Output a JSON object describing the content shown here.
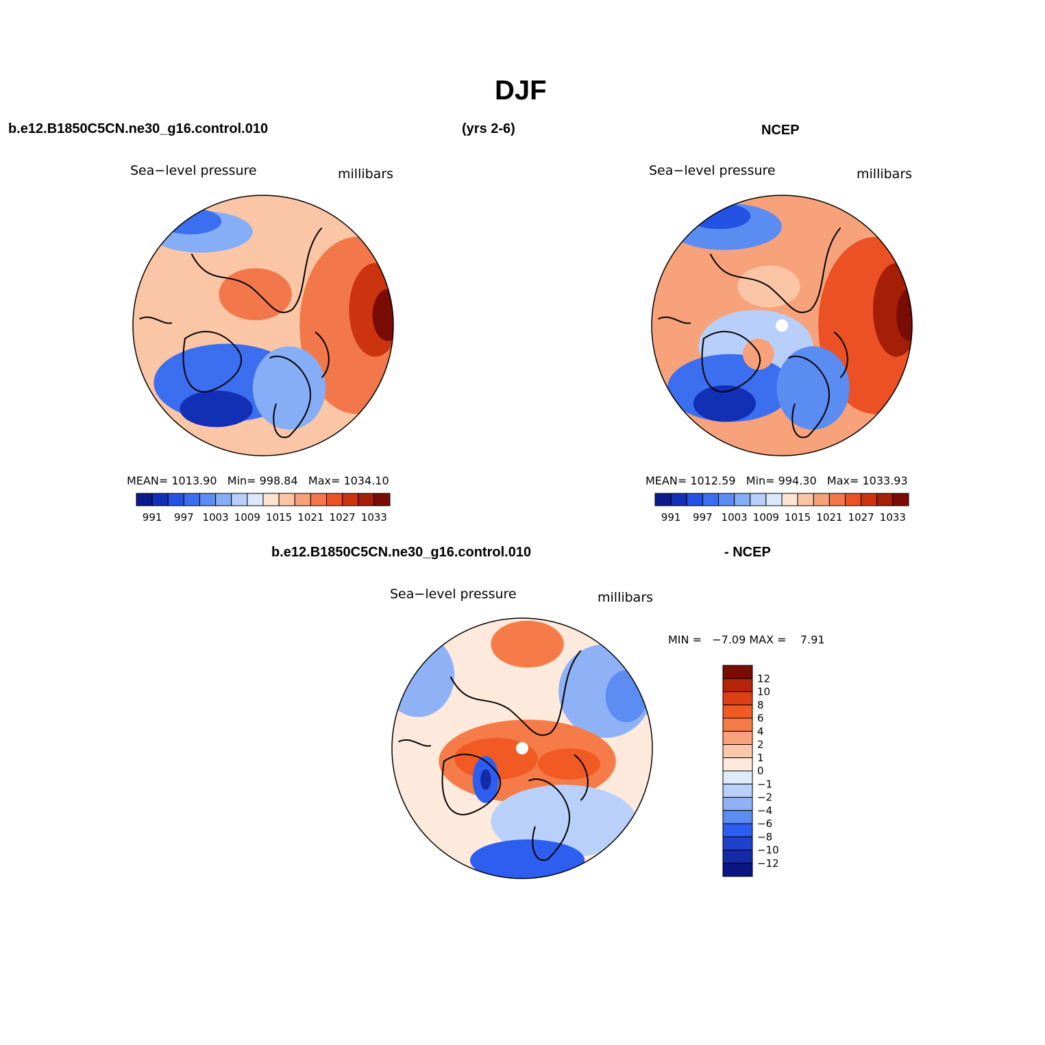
{
  "chart_data": [
    {
      "type": "heatmap",
      "id": "model",
      "projection": "north-polar stereographic",
      "variable_label": "Sea−level pressure",
      "units_label": "millibars",
      "stats": {
        "mean_label": "MEAN=",
        "mean": "1013.90",
        "min_label": "Min=",
        "min": "998.84",
        "max_label": "Max=",
        "max": "1034.10"
      },
      "colorbar": {
        "orientation": "horizontal",
        "colors": [
          "#0a1b8a",
          "#1230b5",
          "#2453e3",
          "#3c6ef0",
          "#5b8cf2",
          "#86aef6",
          "#b7cffa",
          "#dce9fb",
          "#fde4d2",
          "#fbc6a6",
          "#f7a27a",
          "#f2784c",
          "#eb5124",
          "#cc330f",
          "#a51e08",
          "#7a0c06"
        ],
        "labels": [
          "991",
          "997",
          "1003",
          "1009",
          "1015",
          "1021",
          "1027",
          "1033"
        ]
      },
      "blobs": [
        {
          "x": 0.26,
          "y": 0.14,
          "rx": 0.2,
          "ry": 0.08,
          "c": 5
        },
        {
          "x": 0.22,
          "y": 0.1,
          "rx": 0.12,
          "ry": 0.05,
          "c": 3
        },
        {
          "x": 0.86,
          "y": 0.5,
          "rx": 0.22,
          "ry": 0.34,
          "c": 11
        },
        {
          "x": 0.93,
          "y": 0.44,
          "rx": 0.1,
          "ry": 0.18,
          "c": 13
        },
        {
          "x": 0.98,
          "y": 0.46,
          "rx": 0.06,
          "ry": 0.1,
          "c": 15
        },
        {
          "x": 0.47,
          "y": 0.38,
          "rx": 0.14,
          "ry": 0.1,
          "c": 11
        },
        {
          "x": 0.36,
          "y": 0.72,
          "rx": 0.28,
          "ry": 0.15,
          "c": 3
        },
        {
          "x": 0.32,
          "y": 0.82,
          "rx": 0.14,
          "ry": 0.07,
          "c": 1
        },
        {
          "x": 0.6,
          "y": 0.74,
          "rx": 0.14,
          "ry": 0.16,
          "c": 5
        }
      ]
    },
    {
      "type": "heatmap",
      "id": "obs",
      "projection": "north-polar stereographic",
      "variable_label": "Sea−level pressure",
      "units_label": "millibars",
      "stats": {
        "mean_label": "MEAN=",
        "mean": "1012.59",
        "min_label": "Min=",
        "min": "994.30",
        "max_label": "Max=",
        "max": "1033.93"
      },
      "colorbar": {
        "orientation": "horizontal",
        "colors": [
          "#0a1b8a",
          "#1230b5",
          "#2453e3",
          "#3c6ef0",
          "#5b8cf2",
          "#86aef6",
          "#b7cffa",
          "#dce9fb",
          "#fde4d2",
          "#fbc6a6",
          "#f7a27a",
          "#f2784c",
          "#eb5124",
          "#cc330f",
          "#a51e08",
          "#7a0c06"
        ],
        "labels": [
          "991",
          "997",
          "1003",
          "1009",
          "1015",
          "1021",
          "1027",
          "1033"
        ]
      },
      "blobs": [
        {
          "x": 0.28,
          "y": 0.12,
          "rx": 0.22,
          "ry": 0.09,
          "c": 4
        },
        {
          "x": 0.26,
          "y": 0.08,
          "rx": 0.12,
          "ry": 0.05,
          "c": 2
        },
        {
          "x": 0.86,
          "y": 0.5,
          "rx": 0.22,
          "ry": 0.34,
          "c": 12
        },
        {
          "x": 0.94,
          "y": 0.44,
          "rx": 0.09,
          "ry": 0.18,
          "c": 14
        },
        {
          "x": 0.99,
          "y": 0.46,
          "rx": 0.05,
          "ry": 0.1,
          "c": 15
        },
        {
          "x": 0.45,
          "y": 0.35,
          "rx": 0.12,
          "ry": 0.08,
          "c": 9
        },
        {
          "x": 0.4,
          "y": 0.58,
          "rx": 0.22,
          "ry": 0.14,
          "c": 6
        },
        {
          "x": 0.3,
          "y": 0.74,
          "rx": 0.24,
          "ry": 0.13,
          "c": 3
        },
        {
          "x": 0.28,
          "y": 0.8,
          "rx": 0.12,
          "ry": 0.07,
          "c": 1
        },
        {
          "x": 0.41,
          "y": 0.61,
          "rx": 0.06,
          "ry": 0.06,
          "c": 10
        },
        {
          "x": 0.62,
          "y": 0.74,
          "rx": 0.14,
          "ry": 0.16,
          "c": 4
        }
      ]
    },
    {
      "type": "heatmap",
      "id": "difference",
      "projection": "north-polar stereographic",
      "variable_label": "Sea−level pressure",
      "units_label": "millibars",
      "stats": {
        "min_label": "MIN =",
        "min": "−7.09",
        "max_label": "MAX =",
        "max": "7.91"
      },
      "colorbar": {
        "orientation": "vertical",
        "colors": [
          "#7a0c06",
          "#b5250a",
          "#df3f14",
          "#f15a22",
          "#f57c48",
          "#f9a27b",
          "#fbc8ab",
          "#fdeadc",
          "#deebfb",
          "#b9d1fa",
          "#8fb1f6",
          "#5d8cf2",
          "#2e5ef0",
          "#1f41cc",
          "#142aa6",
          "#0a1682"
        ],
        "labels": [
          "12",
          "10",
          "8",
          "6",
          "4",
          "2",
          "1",
          "0",
          "−1",
          "−2",
          "−4",
          "−6",
          "−8",
          "−10",
          "−12"
        ]
      },
      "blobs": [
        {
          "x": 0.1,
          "y": 0.22,
          "rx": 0.14,
          "ry": 0.16,
          "c": 10
        },
        {
          "x": 0.52,
          "y": 0.1,
          "rx": 0.14,
          "ry": 0.09,
          "c": 4
        },
        {
          "x": 0.82,
          "y": 0.28,
          "rx": 0.18,
          "ry": 0.18,
          "c": 10
        },
        {
          "x": 0.9,
          "y": 0.3,
          "rx": 0.08,
          "ry": 0.1,
          "c": 11
        },
        {
          "x": 0.52,
          "y": 0.55,
          "rx": 0.34,
          "ry": 0.16,
          "c": 4
        },
        {
          "x": 0.4,
          "y": 0.54,
          "rx": 0.16,
          "ry": 0.08,
          "c": 3
        },
        {
          "x": 0.68,
          "y": 0.56,
          "rx": 0.12,
          "ry": 0.06,
          "c": 3
        },
        {
          "x": 0.66,
          "y": 0.78,
          "rx": 0.28,
          "ry": 0.14,
          "c": 9
        },
        {
          "x": 0.52,
          "y": 0.93,
          "rx": 0.22,
          "ry": 0.08,
          "c": 12
        },
        {
          "x": 0.36,
          "y": 0.62,
          "rx": 0.05,
          "ry": 0.09,
          "c": 12
        },
        {
          "x": 0.36,
          "y": 0.62,
          "rx": 0.02,
          "ry": 0.04,
          "c": 14
        }
      ]
    }
  ],
  "page": {
    "title": "DJF",
    "case_name": "b.e12.B1850C5CN.ne30_g16.control.010",
    "years": "(yrs 2-6)",
    "obs_name": "NCEP",
    "diff_case_name": "b.e12.B1850C5CN.ne30_g16.control.010",
    "diff_obs_name": "- NCEP"
  }
}
